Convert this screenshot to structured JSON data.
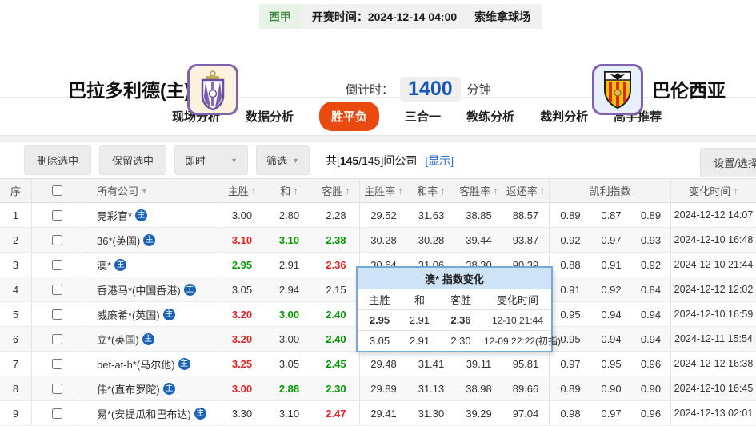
{
  "meta": {
    "league": "西甲",
    "kickoff": "开赛时间：2024-12-14 04:00",
    "venue": "索维拿球场"
  },
  "teams": {
    "home_name": "巴拉多利德(主)",
    "away_name": "巴伦西亚"
  },
  "countdown": {
    "label": "倒计时：",
    "value": "1400",
    "unit": "分钟"
  },
  "tabs": [
    {
      "label": "现场分析",
      "active": false
    },
    {
      "label": "数据分析",
      "active": false
    },
    {
      "label": "胜平负",
      "active": true
    },
    {
      "label": "三合一",
      "active": false
    },
    {
      "label": "教练分析",
      "active": false
    },
    {
      "label": "裁判分析",
      "active": false
    },
    {
      "label": "高手推荐",
      "active": false
    }
  ],
  "toolbar": {
    "delete_label": "删除选中",
    "keep_label": "保留选中",
    "instant_label": "即时",
    "filter_label": "筛选",
    "count_prefix": "共[",
    "count_bold": "145",
    "count_suffix": "/145]间公司",
    "show_link": "显示",
    "settings_label": "设置/选择"
  },
  "table": {
    "headers": {
      "seq": "序",
      "company": "所有公司",
      "home": "主胜",
      "draw": "和",
      "away": "客胜",
      "home_rate": "主胜率",
      "draw_rate": "和率",
      "away_rate": "客胜率",
      "return_rate": "返还率",
      "kelly": "凯利指数",
      "time": "变化时间"
    },
    "rows": [
      {
        "seq": "1",
        "company": "竞彩官*",
        "badge": "主",
        "odds": [
          "3.00",
          "2.80",
          "2.28"
        ],
        "odds_colors": [
          "k",
          "k",
          "k"
        ],
        "rates": [
          "29.52",
          "31.63",
          "38.85",
          "88.57"
        ],
        "kelly": [
          "0.89",
          "0.87",
          "0.89"
        ],
        "time": "2024-12-12 14:07"
      },
      {
        "seq": "2",
        "company": "36*(英国)",
        "badge": "主",
        "odds": [
          "3.10",
          "3.10",
          "2.38"
        ],
        "odds_colors": [
          "r",
          "g",
          "g"
        ],
        "rates": [
          "30.28",
          "30.28",
          "39.44",
          "93.87"
        ],
        "kelly": [
          "0.92",
          "0.97",
          "0.93"
        ],
        "time": "2024-12-10 16:48"
      },
      {
        "seq": "3",
        "company": "澳*",
        "badge": "主",
        "odds": [
          "2.95",
          "2.91",
          "2.36"
        ],
        "odds_colors": [
          "g",
          "k",
          "r"
        ],
        "rates": [
          "30.64",
          "31.06",
          "38.30",
          "90.39"
        ],
        "kelly": [
          "0.88",
          "0.91",
          "0.92"
        ],
        "time": "2024-12-10 21:44"
      },
      {
        "seq": "4",
        "company": "香港马*(中国香港)",
        "badge": "主",
        "odds": [
          "3.05",
          "2.94",
          "2.15"
        ],
        "odds_colors": [
          "k",
          "k",
          "k"
        ],
        "rates": [
          "",
          "",
          "",
          ""
        ],
        "kelly": [
          "0.91",
          "0.92",
          "0.84"
        ],
        "time": "2024-12-12 12:02"
      },
      {
        "seq": "5",
        "company": "威廉希*(英国)",
        "badge": "主",
        "odds": [
          "3.20",
          "3.00",
          "2.40"
        ],
        "odds_colors": [
          "r",
          "g",
          "g"
        ],
        "rates": [
          "",
          "",
          "",
          ""
        ],
        "kelly": [
          "0.95",
          "0.94",
          "0.94"
        ],
        "time": "2024-12-10 16:59"
      },
      {
        "seq": "6",
        "company": "立*(英国)",
        "badge": "主",
        "odds": [
          "3.20",
          "3.00",
          "2.40"
        ],
        "odds_colors": [
          "r",
          "k",
          "g"
        ],
        "rates": [
          "",
          "",
          "",
          ""
        ],
        "kelly": [
          "0.95",
          "0.94",
          "0.94"
        ],
        "time": "2024-12-11 15:54"
      },
      {
        "seq": "7",
        "company": "bet-at-h*(马尔他)",
        "badge": "主",
        "odds": [
          "3.25",
          "3.05",
          "2.45"
        ],
        "odds_colors": [
          "r",
          "k",
          "g"
        ],
        "rates": [
          "29.48",
          "31.41",
          "39.11",
          "95.81"
        ],
        "kelly": [
          "0.97",
          "0.95",
          "0.96"
        ],
        "time": "2024-12-12 16:38"
      },
      {
        "seq": "8",
        "company": "伟*(直布罗陀)",
        "badge": "主",
        "odds": [
          "3.00",
          "2.88",
          "2.30"
        ],
        "odds_colors": [
          "r",
          "g",
          "g"
        ],
        "rates": [
          "29.89",
          "31.13",
          "38.98",
          "89.66"
        ],
        "kelly": [
          "0.89",
          "0.90",
          "0.90"
        ],
        "time": "2024-12-10 16:45"
      },
      {
        "seq": "9",
        "company": "易*(安提瓜和巴布达)",
        "badge": "主",
        "odds": [
          "3.30",
          "3.10",
          "2.47"
        ],
        "odds_colors": [
          "k",
          "k",
          "r"
        ],
        "rates": [
          "29.41",
          "31.30",
          "39.29",
          "97.04"
        ],
        "kelly": [
          "0.98",
          "0.97",
          "0.96"
        ],
        "time": "2024-12-13 02:01"
      }
    ]
  },
  "popup": {
    "title": "澳* 指数变化",
    "headers": [
      "主胜",
      "和",
      "客胜",
      "变化时间"
    ],
    "rows": [
      {
        "values": [
          "2.95",
          "2.91",
          "2.36"
        ],
        "colors": [
          "g",
          "k",
          "r"
        ],
        "time": "12-10 21:44"
      },
      {
        "values": [
          "3.05",
          "2.91",
          "2.30"
        ],
        "colors": [
          "k",
          "k",
          "k"
        ],
        "time": "12-09 22:22(初指)"
      }
    ]
  },
  "colors": {
    "accent": "#ea4a10",
    "odds_red": "#e62222",
    "odds_green": "#009900",
    "link_blue": "#2b6cd4",
    "badge_blue": "#1b63b5"
  }
}
